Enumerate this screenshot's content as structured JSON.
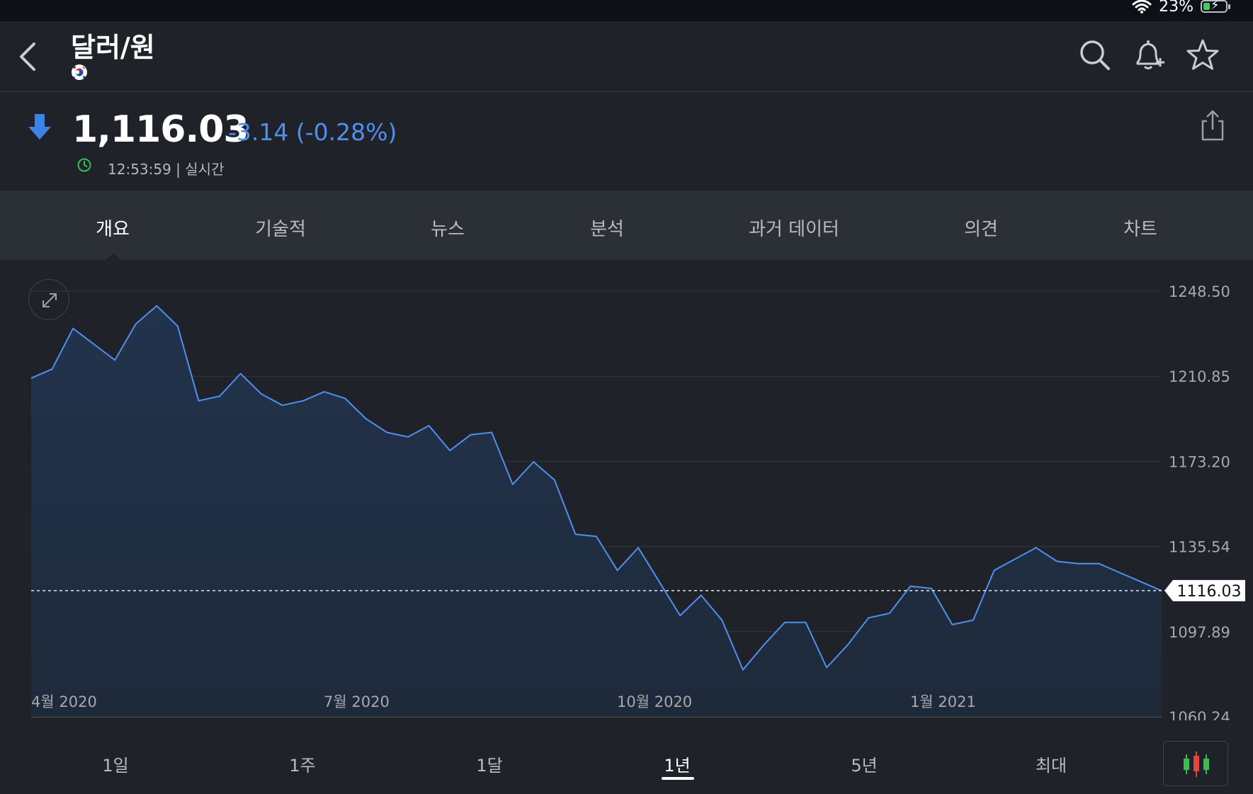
{
  "status": {
    "battery_text": "23%"
  },
  "header": {
    "title": "달러/원"
  },
  "quote": {
    "price": "1,116.03",
    "change": "-3.14 (-0.28%)",
    "time": "12:53:59 | 실시간"
  },
  "tabs": [
    {
      "label": "개요",
      "active": true
    },
    {
      "label": "기술적"
    },
    {
      "label": "뉴스"
    },
    {
      "label": "분석"
    },
    {
      "label": "과거 데이터"
    },
    {
      "label": "의견"
    },
    {
      "label": "차트"
    }
  ],
  "ranges": [
    {
      "label": "1일"
    },
    {
      "label": "1주"
    },
    {
      "label": "1달"
    },
    {
      "label": "1년",
      "active": true
    },
    {
      "label": "5년"
    },
    {
      "label": "최대"
    }
  ],
  "colors": {
    "line": "#4f8ff0",
    "down": "#3d82e6",
    "clock": "#35c05a",
    "candle_green": "#3dbb4f",
    "candle_red": "#e0483d"
  },
  "chart_data": {
    "type": "area",
    "y_ticks": [
      "1248.50",
      "1210.85",
      "1173.20",
      "1135.54",
      "1097.89",
      "1060.24"
    ],
    "ylim": [
      1060.24,
      1248.5
    ],
    "x_tick_labels": [
      "4월 2020",
      "7월 2020",
      "10월 2020",
      "1월 2021"
    ],
    "current_value": "1116.03",
    "reference_line": 1116.03,
    "series": [
      {
        "values": [
          1210,
          1214,
          1232,
          1225,
          1218,
          1234,
          1242,
          1233,
          1200,
          1202,
          1212,
          1203,
          1198,
          1200,
          1204,
          1201,
          1192,
          1186,
          1184,
          1189,
          1178,
          1185,
          1186,
          1163,
          1173,
          1165,
          1141,
          1140,
          1125,
          1135,
          1120,
          1105,
          1114,
          1103,
          1081,
          1092,
          1102,
          1102,
          1082,
          1092,
          1104,
          1106,
          1118,
          1117,
          1101,
          1103,
          1125,
          1130,
          1135,
          1129,
          1128,
          1128,
          1124,
          1120,
          1116
        ]
      }
    ]
  }
}
